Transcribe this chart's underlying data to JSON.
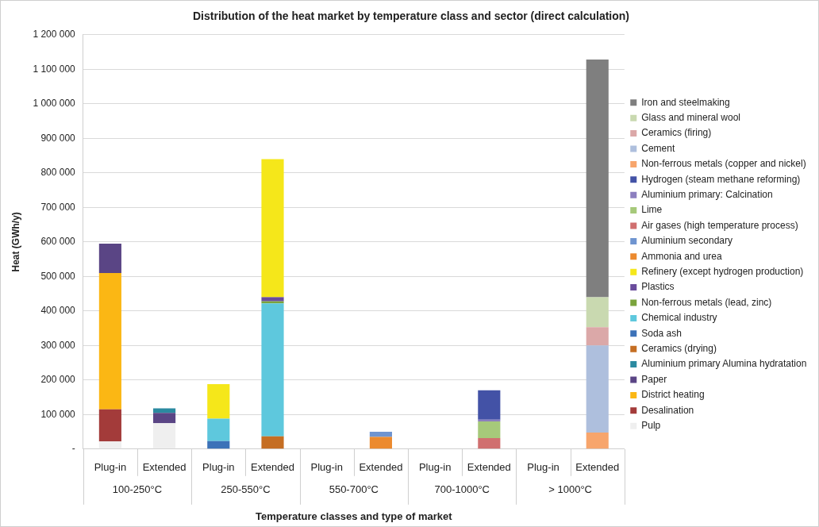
{
  "chart_data": {
    "type": "bar",
    "stacked": true,
    "title": "Distribution of the heat market by temperature class and sector (direct calculation)",
    "xlabel": "Temperature classes and type of market",
    "ylabel": "Heat (GWh/y)",
    "categories": [
      "Plug-in",
      "Extended",
      "Plug-in",
      "Extended",
      "Plug-in",
      "Extended",
      "Plug-in",
      "Extended",
      "Plug-in",
      "Extended"
    ],
    "annotations": [
      "100-250°C",
      "250-550°C",
      "550-700°C",
      "700-1000°C",
      "> 1000°C"
    ],
    "ylim": [
      0,
      1200000
    ],
    "yticks": [
      {
        "value": 0,
        "label": "-"
      },
      {
        "value": 100000,
        "label": "100 000"
      },
      {
        "value": 200000,
        "label": "200 000"
      },
      {
        "value": 300000,
        "label": "300 000"
      },
      {
        "value": 400000,
        "label": "400 000"
      },
      {
        "value": 500000,
        "label": "500 000"
      },
      {
        "value": 600000,
        "label": "600 000"
      },
      {
        "value": 700000,
        "label": "700 000"
      },
      {
        "value": 800000,
        "label": "800 000"
      },
      {
        "value": 900000,
        "label": "900 000"
      },
      {
        "value": 1000000,
        "label": "1 000 000"
      },
      {
        "value": 1100000,
        "label": "1 100 000"
      },
      {
        "value": 1200000,
        "label": "1 200 000"
      }
    ],
    "grid": "y",
    "legend": "right",
    "series": [
      {
        "name": "Pulp",
        "color": "#efefef",
        "values": [
          22000,
          75000,
          null,
          null,
          null,
          null,
          null,
          null,
          null,
          null
        ]
      },
      {
        "name": "Desalination",
        "color": "#a33b3a",
        "values": [
          93000,
          null,
          null,
          null,
          null,
          null,
          null,
          null,
          null,
          null
        ]
      },
      {
        "name": "District heating",
        "color": "#fbb714",
        "values": [
          395000,
          null,
          null,
          null,
          null,
          null,
          null,
          null,
          null,
          null
        ]
      },
      {
        "name": "Paper",
        "color": "#5a4585",
        "values": [
          85000,
          30000,
          null,
          null,
          null,
          null,
          null,
          null,
          null,
          null
        ]
      },
      {
        "name": "Aluminium primary Alumina hydratation",
        "color": "#2b8aa0",
        "values": [
          null,
          13000,
          null,
          null,
          null,
          null,
          null,
          null,
          null,
          null
        ]
      },
      {
        "name": "Ceramics (drying)",
        "color": "#c56e23",
        "values": [
          null,
          null,
          null,
          37000,
          null,
          null,
          null,
          null,
          null,
          null
        ]
      },
      {
        "name": "Soda ash",
        "color": "#3c72b8",
        "values": [
          null,
          null,
          23000,
          null,
          null,
          null,
          null,
          null,
          null,
          null
        ]
      },
      {
        "name": "Chemical industry",
        "color": "#5ec8dd",
        "values": [
          null,
          null,
          65000,
          385000,
          null,
          null,
          null,
          null,
          null,
          null
        ]
      },
      {
        "name": "Non-ferrous metals (lead, zinc)",
        "color": "#7aa33c",
        "values": [
          null,
          null,
          null,
          6000,
          null,
          null,
          null,
          null,
          null,
          null
        ]
      },
      {
        "name": "Plastics",
        "color": "#6a4c9c",
        "values": [
          null,
          null,
          null,
          12000,
          null,
          null,
          null,
          null,
          null,
          null
        ]
      },
      {
        "name": "Refinery (except hydrogen production)",
        "color": "#f5e71a",
        "values": [
          null,
          null,
          100000,
          400000,
          null,
          null,
          null,
          null,
          null,
          null
        ]
      },
      {
        "name": "Ammonia and urea",
        "color": "#ec8a2e",
        "values": [
          null,
          null,
          null,
          null,
          null,
          35000,
          null,
          null,
          null,
          null
        ]
      },
      {
        "name": "Aluminium secondary",
        "color": "#6f94d0",
        "values": [
          null,
          null,
          null,
          null,
          null,
          15000,
          null,
          null,
          null,
          null
        ]
      },
      {
        "name": "Air gases (high temperature process)",
        "color": "#d06f6f",
        "values": [
          null,
          null,
          null,
          null,
          null,
          null,
          null,
          32000,
          null,
          null
        ]
      },
      {
        "name": "Lime",
        "color": "#a6c97a",
        "values": [
          null,
          null,
          null,
          null,
          null,
          null,
          null,
          48000,
          null,
          null
        ]
      },
      {
        "name": "Aluminium primary: Calcination",
        "color": "#8c7fbf",
        "values": [
          null,
          null,
          null,
          null,
          null,
          null,
          null,
          5000,
          null,
          null
        ]
      },
      {
        "name": "Hydrogen (steam methane reforming)",
        "color": "#4352a6",
        "values": [
          null,
          null,
          null,
          null,
          null,
          null,
          null,
          85000,
          null,
          null
        ]
      },
      {
        "name": "Non-ferrous metals (copper and nickel)",
        "color": "#f7a56c",
        "values": [
          null,
          null,
          null,
          null,
          null,
          null,
          null,
          null,
          null,
          48000
        ]
      },
      {
        "name": "Cement",
        "color": "#aebfdd",
        "values": [
          null,
          null,
          null,
          null,
          null,
          null,
          null,
          null,
          null,
          252000
        ]
      },
      {
        "name": "Ceramics (firing)",
        "color": "#dba8a8",
        "values": [
          null,
          null,
          null,
          null,
          null,
          null,
          null,
          null,
          null,
          53000
        ]
      },
      {
        "name": "Glass and mineral wool",
        "color": "#c9d9b0",
        "values": [
          null,
          null,
          null,
          null,
          null,
          null,
          null,
          null,
          null,
          87000
        ]
      },
      {
        "name": "Iron and steelmaking",
        "color": "#7f7f7f",
        "values": [
          null,
          null,
          null,
          null,
          null,
          null,
          null,
          null,
          null,
          688000
        ]
      }
    ]
  }
}
